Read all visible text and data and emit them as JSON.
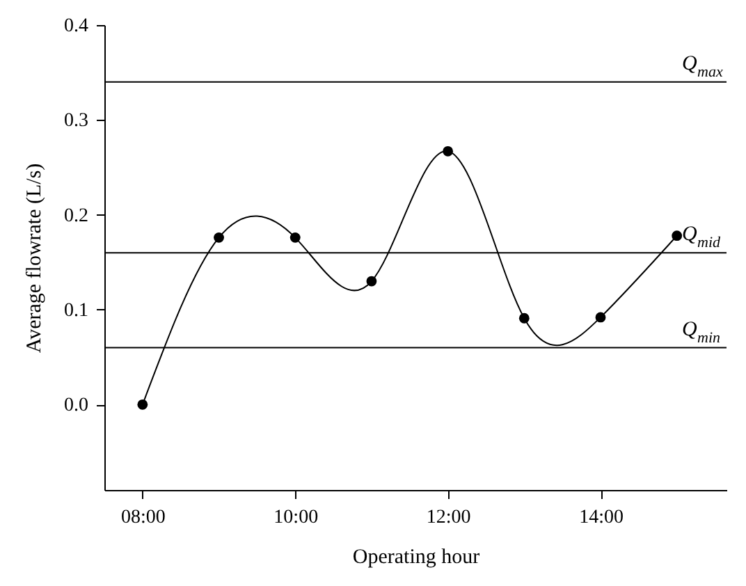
{
  "chart_data": {
    "type": "line",
    "xlabel": "Operating hour",
    "ylabel": "Average flowrate (L/s)",
    "x": [
      8,
      9,
      10,
      11,
      12,
      13,
      14,
      15
    ],
    "values": [
      0.0,
      0.176,
      0.176,
      0.13,
      0.267,
      0.091,
      0.092,
      0.178
    ],
    "color": "#000000",
    "marker": "circle",
    "line_style": "solid",
    "grid": false,
    "xlim": [
      7.5,
      15.65
    ],
    "xticks": [
      {
        "value": 8,
        "label": "08:00"
      },
      {
        "value": 10,
        "label": "10:00"
      },
      {
        "value": 12,
        "label": "12:00"
      },
      {
        "value": 14,
        "label": "14:00"
      }
    ],
    "ylim": [
      -0.09,
      0.4
    ],
    "yticks": [
      {
        "value": 0,
        "label": "0.0"
      },
      {
        "value": 0.1,
        "label": "0.1"
      },
      {
        "value": 0.2,
        "label": "0.2"
      },
      {
        "value": 0.3,
        "label": "0.3"
      },
      {
        "value": 0.4,
        "label": "0.4"
      }
    ],
    "ref_lines": [
      {
        "axis": "y",
        "value": 0.34,
        "label": "Q$_{max}$"
      },
      {
        "axis": "y",
        "value": 0.16,
        "label": "Q$_{mid}$"
      },
      {
        "axis": "y",
        "value": 0.06,
        "label": "Q$_{min}$"
      }
    ]
  }
}
